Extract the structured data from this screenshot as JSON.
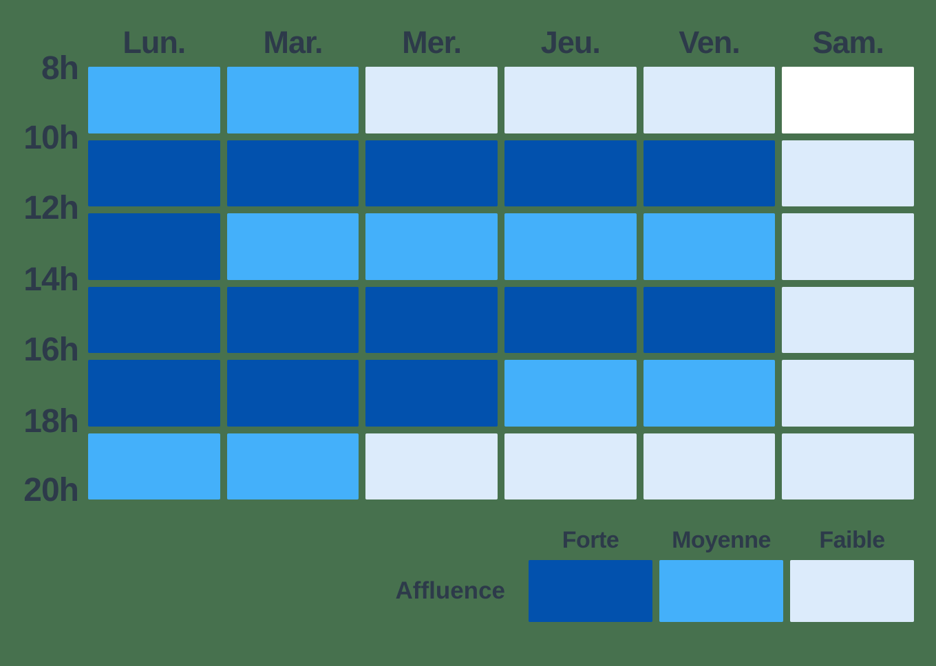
{
  "chart_data": {
    "type": "heatmap",
    "background": "#47714E",
    "text_color": "#2D3A4A",
    "categories": [
      "Lun.",
      "Mar.",
      "Mer.",
      "Jeu.",
      "Ven.",
      "Sam."
    ],
    "time_labels": [
      "8h",
      "10h",
      "12h",
      "14h",
      "16h",
      "18h",
      "20h"
    ],
    "levels": {
      "forte": {
        "label": "Forte",
        "color": "#0251AD"
      },
      "moyenne": {
        "label": "Moyenne",
        "color": "#44B0FA"
      },
      "faible": {
        "label": "Faible",
        "color": "#DCEBFB"
      },
      "none": {
        "label": "",
        "color": "#FFFFFF"
      }
    },
    "rows": [
      {
        "slot": "8h-10h",
        "values": [
          "moyenne",
          "moyenne",
          "faible",
          "faible",
          "faible",
          "none"
        ]
      },
      {
        "slot": "10h-12h",
        "values": [
          "forte",
          "forte",
          "forte",
          "forte",
          "forte",
          "faible"
        ]
      },
      {
        "slot": "12h-14h",
        "values": [
          "forte",
          "moyenne",
          "moyenne",
          "moyenne",
          "moyenne",
          "faible"
        ]
      },
      {
        "slot": "14h-16h",
        "values": [
          "forte",
          "forte",
          "forte",
          "forte",
          "forte",
          "faible"
        ]
      },
      {
        "slot": "16h-18h",
        "values": [
          "forte",
          "forte",
          "forte",
          "moyenne",
          "moyenne",
          "faible"
        ]
      },
      {
        "slot": "18h-20h",
        "values": [
          "moyenne",
          "moyenne",
          "faible",
          "faible",
          "faible",
          "faible"
        ]
      }
    ],
    "legend": {
      "title": "Affluence",
      "position": "bottom-right",
      "entries": [
        {
          "label": "Forte",
          "level": "forte"
        },
        {
          "label": "Moyenne",
          "level": "moyenne"
        },
        {
          "label": "Faible",
          "level": "faible"
        }
      ]
    },
    "grid": {
      "on": true,
      "gap_color": "#47714E"
    },
    "xlabel": "",
    "ylabel": ""
  }
}
